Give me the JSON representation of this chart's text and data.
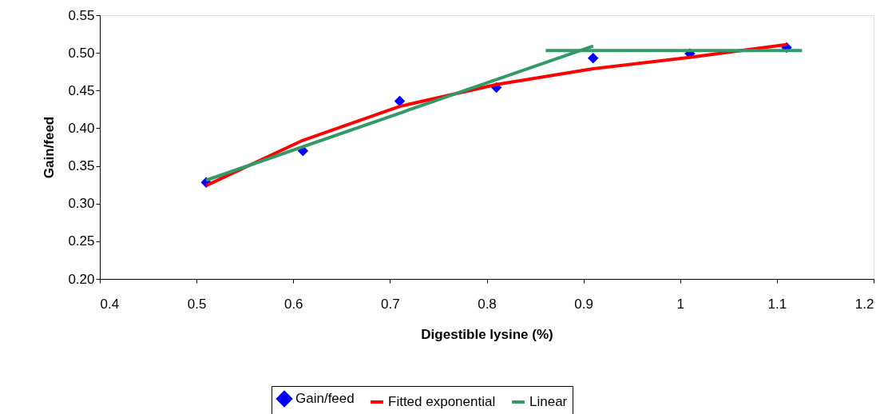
{
  "chart_data": {
    "type": "line",
    "xlabel": "Digestible lysine (%)",
    "ylabel": "Gain/feed",
    "xlim": [
      0.4,
      1.2
    ],
    "xticks": [
      0.4,
      0.5,
      0.6,
      0.7,
      0.8,
      0.9,
      1,
      1.1,
      1.2
    ],
    "ylim": [
      0.2,
      0.55
    ],
    "yticks": [
      {
        "value": 0.2,
        "label": "0.20"
      },
      {
        "value": 0.25,
        "label": "0.25"
      },
      {
        "value": 0.3,
        "label": "0.30"
      },
      {
        "value": 0.35,
        "label": "0.35"
      },
      {
        "value": 0.4,
        "label": "0.40"
      },
      {
        "value": 0.45,
        "label": "0.45"
      },
      {
        "value": 0.5,
        "label": "0.50"
      },
      {
        "value": 0.55,
        "label": "0.55"
      }
    ],
    "grid": false,
    "legend": "bottom",
    "marker": "none",
    "line_style": "solid",
    "series": [
      {
        "name": "Gain/feed",
        "type": "scatter",
        "marker": "diamond",
        "color": "#0000ff",
        "x": [
          0.51,
          0.61,
          0.71,
          0.81,
          0.91,
          1.01,
          1.11
        ],
        "values": [
          0.328,
          0.37,
          0.436,
          0.454,
          0.493,
          0.499,
          0.507
        ]
      },
      {
        "name": "Fitted exponential",
        "color": "#ff0000",
        "x": [
          0.51,
          0.61,
          0.71,
          0.81,
          0.91,
          1.01,
          1.11
        ],
        "values": [
          0.324,
          0.384,
          0.429,
          0.458,
          0.479,
          0.494,
          0.511
        ]
      },
      {
        "name": "Linear",
        "color": "#339966",
        "x": [
          0.51,
          0.91,
          0.88,
          0.861,
          1.126
        ],
        "values": [
          0.331,
          0.509,
          null,
          0.503,
          0.503
        ]
      }
    ]
  }
}
